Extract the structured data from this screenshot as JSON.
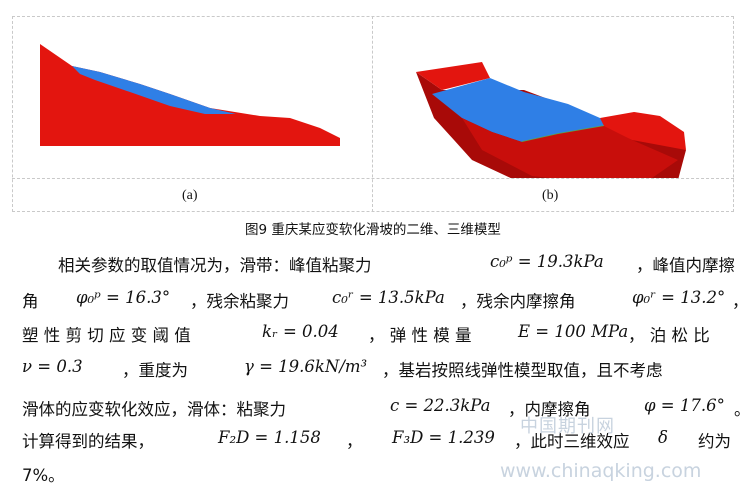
{
  "figure": {
    "label_a": "(a)",
    "label_b": "(b)",
    "caption": "图9 重庆某应变软化滑坡的二维、三维模型",
    "colors": {
      "slope_red": "#e3150f",
      "slip_blue": "#2f7fe6",
      "dark_red": "#a80a08",
      "slip_green": "#5aa64a"
    }
  },
  "para": {
    "l1a": "相关参数的取值情况为，滑带：峰值粘聚力",
    "l1m": "c₀ᵖ = 19.3kPa",
    "l1b": "，峰值内摩擦",
    "l2a": "角",
    "l2m1": "φ₀ᵖ = 16.3°",
    "l2b": "，残余粘聚力",
    "l2m2": "c₀ʳ = 13.5kPa",
    "l2c": "，残余内摩擦角",
    "l2m3": "φ₀ʳ = 13.2°",
    "l2d": "，",
    "l3a": "塑 性 剪 切 应 变 阈 值",
    "l3m1": "kᵣ = 0.04",
    "l3b": "， 弹 性 模 量",
    "l3m2": "E = 100 MPa",
    "l3c": "， 泊 松 比",
    "l4m1": "ν = 0.3",
    "l4a": "，重度为",
    "l4m2": "γ = 19.6kN/m³",
    "l4b": "，基岩按照线弹性模型取值，且不考虑",
    "l5a": "滑体的应变软化效应，滑体：粘聚力",
    "l5m1": "c = 22.3kPa",
    "l5b": "，内摩擦角",
    "l5m2": "φ = 17.6°",
    "l5c": "。",
    "l6a": "计算得到的结果，",
    "l6m1": "F₂D = 1.158",
    "l6b": "，",
    "l6m2": "F₃D = 1.239",
    "l6c": "，此时三维效应",
    "l6m3": "δ",
    "l6d": "约为",
    "l7a": "7%。"
  },
  "watermark": {
    "top": "中国期刊网",
    "bottom": "www.chinaqking.com"
  }
}
